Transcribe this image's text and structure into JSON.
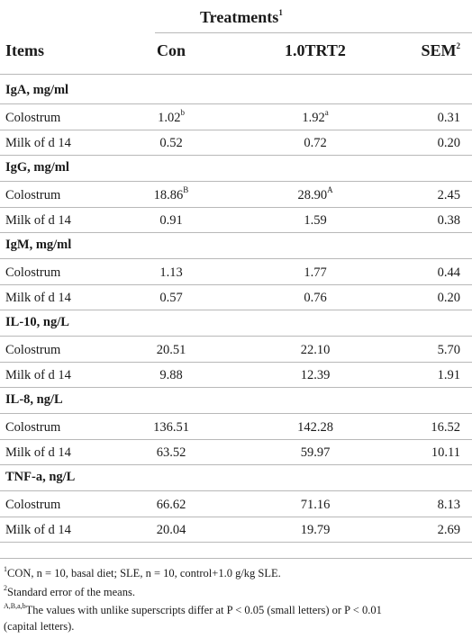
{
  "header": {
    "group_label": "Treatments",
    "group_sup": "1",
    "items_label": "Items",
    "col1": "Con",
    "col2": "1.0TRT2",
    "col3": "SEM",
    "col3_sup": "2"
  },
  "sections": [
    {
      "title": "IgA, mg/ml",
      "rows": [
        {
          "label": "Colostrum",
          "con": "1.02",
          "con_sup": "b",
          "trt": "1.92",
          "trt_sup": "a",
          "sem": "0.31"
        },
        {
          "label": "Milk of d 14",
          "con": "0.52",
          "con_sup": "",
          "trt": "0.72",
          "trt_sup": "",
          "sem": "0.20"
        }
      ]
    },
    {
      "title": "IgG, mg/ml",
      "rows": [
        {
          "label": "Colostrum",
          "con": "18.86",
          "con_sup": "B",
          "trt": "28.90",
          "trt_sup": "A",
          "sem": "2.45"
        },
        {
          "label": "Milk of d 14",
          "con": "0.91",
          "con_sup": "",
          "trt": "1.59",
          "trt_sup": "",
          "sem": "0.38"
        }
      ]
    },
    {
      "title": "IgM, mg/ml",
      "rows": [
        {
          "label": "Colostrum",
          "con": "1.13",
          "con_sup": "",
          "trt": "1.77",
          "trt_sup": "",
          "sem": "0.44"
        },
        {
          "label": "Milk of d 14",
          "con": "0.57",
          "con_sup": "",
          "trt": "0.76",
          "trt_sup": "",
          "sem": "0.20"
        }
      ]
    },
    {
      "title": "IL-10, ng/L",
      "rows": [
        {
          "label": "Colostrum",
          "con": "20.51",
          "con_sup": "",
          "trt": "22.10",
          "trt_sup": "",
          "sem": "5.70"
        },
        {
          "label": "Milk of d 14",
          "con": "9.88",
          "con_sup": "",
          "trt": "12.39",
          "trt_sup": "",
          "sem": "1.91"
        }
      ]
    },
    {
      "title": "IL-8, ng/L",
      "rows": [
        {
          "label": "Colostrum",
          "con": "136.51",
          "con_sup": "",
          "trt": "142.28",
          "trt_sup": "",
          "sem": "16.52"
        },
        {
          "label": "Milk of d 14",
          "con": "63.52",
          "con_sup": "",
          "trt": "59.97",
          "trt_sup": "",
          "sem": "10.11"
        }
      ]
    },
    {
      "title": "TNF-a, ng/L",
      "rows": [
        {
          "label": "Colostrum",
          "con": "66.62",
          "con_sup": "",
          "trt": "71.16",
          "trt_sup": "",
          "sem": "8.13"
        },
        {
          "label": "Milk of d 14",
          "con": "20.04",
          "con_sup": "",
          "trt": "19.79",
          "trt_sup": "",
          "sem": "2.69"
        }
      ]
    }
  ],
  "footnotes": {
    "fn1_sup": "1",
    "fn1": "CON, n = 10, basal diet; SLE, n = 10, control+1.0 g/kg SLE.",
    "fn2_sup": "2",
    "fn2": "Standard error of the means.",
    "fn3_sup": "A,B,a,b",
    "fn3_line1": "The values with unlike superscripts differ at P < 0.05 (small letters) or P < 0.01",
    "fn3_line2": "(capital letters)."
  }
}
